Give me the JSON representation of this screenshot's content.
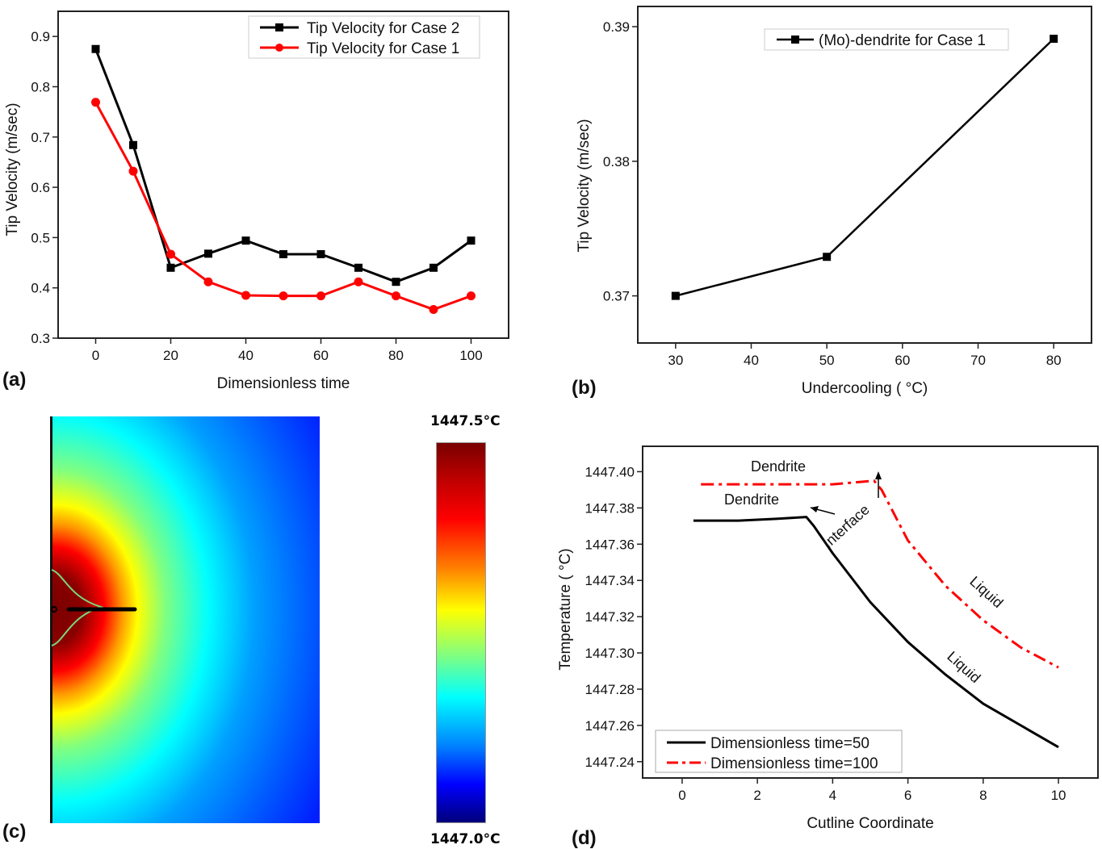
{
  "chart_data": [
    {
      "type": "line",
      "panel": "(a)",
      "xlabel": "Dimensionless time",
      "ylabel": "Tip Velocity (m/sec)",
      "xlim": [
        -10,
        110
      ],
      "ylim": [
        0.3,
        0.95
      ],
      "xticks": [
        0,
        20,
        40,
        60,
        80,
        100
      ],
      "yticks": [
        0.3,
        0.4,
        0.5,
        0.6,
        0.7,
        0.8,
        0.9
      ],
      "legend": "top-right",
      "x": [
        0,
        10,
        20,
        30,
        40,
        50,
        60,
        70,
        80,
        90,
        100
      ],
      "series": [
        {
          "name": "Tip Velocity for Case 2",
          "color": "#000000",
          "marker": "square",
          "values": [
            0.875,
            0.684,
            0.44,
            0.468,
            0.494,
            0.467,
            0.467,
            0.44,
            0.412,
            0.44,
            0.494
          ]
        },
        {
          "name": "Tip Velocity for Case 1",
          "color": "#ff0000",
          "marker": "circle",
          "values": [
            0.769,
            0.632,
            0.467,
            0.412,
            0.385,
            0.384,
            0.384,
            0.412,
            0.384,
            0.357,
            0.384
          ]
        }
      ]
    },
    {
      "type": "line",
      "panel": "(b)",
      "xlabel": "Undercooling ( °C)",
      "ylabel": "Tip Velocity (m/sec)",
      "xlim": [
        25,
        85
      ],
      "ylim": [
        0.3665,
        0.3915
      ],
      "xticks": [
        30,
        40,
        50,
        60,
        70,
        80
      ],
      "yticks": [
        0.37,
        0.38,
        0.39
      ],
      "legend": "top",
      "x": [
        30,
        50,
        80
      ],
      "series": [
        {
          "name": "(Mo)-dendrite for Case 1",
          "color": "#000000",
          "marker": "square",
          "values": [
            0.37,
            0.3729,
            0.3891
          ]
        }
      ]
    },
    {
      "type": "heatmap",
      "panel": "(c)",
      "colorbar_max": "1447.5°C",
      "colorbar_min": "1447.0°C"
    },
    {
      "type": "line",
      "panel": "(d)",
      "xlabel": "Cutline Coordinate",
      "ylabel": "Temperature ( °C)",
      "xlim": [
        -1.05,
        11.05
      ],
      "ylim": [
        1447.231,
        1447.414
      ],
      "xticks": [
        0,
        2,
        4,
        6,
        8,
        10
      ],
      "yticks": [
        1447.24,
        1447.26,
        1447.28,
        1447.3,
        1447.32,
        1447.34,
        1447.36,
        1447.38,
        1447.4
      ],
      "legend": "bottom-left",
      "series": [
        {
          "name": "Dimensionless time=50",
          "color": "#000000",
          "dash": "solid",
          "x": [
            0.3,
            1.5,
            2.5,
            3.3,
            3.5,
            4,
            5,
            6,
            7,
            8,
            9,
            10
          ],
          "values": [
            1447.373,
            1447.373,
            1447.374,
            1447.375,
            1447.37,
            1447.355,
            1447.328,
            1447.306,
            1447.288,
            1447.272,
            1447.26,
            1447.248
          ]
        },
        {
          "name": "Dimensionless time=100",
          "color": "#ff0000",
          "dash": "dashdot",
          "x": [
            0.5,
            2,
            4,
            5.1,
            5.3,
            5.6,
            6,
            7,
            8,
            9,
            10
          ],
          "values": [
            1447.393,
            1447.393,
            1447.393,
            1447.395,
            1447.39,
            1447.378,
            1447.362,
            1447.337,
            1447.318,
            1447.303,
            1447.292
          ]
        }
      ],
      "annotations": [
        "Dendrite",
        "Dendrite",
        "Interface",
        "Liquid",
        "Liquid"
      ]
    }
  ],
  "labels": {
    "a": "(a)",
    "b": "(b)",
    "c": "(c)",
    "d": "(d)"
  }
}
